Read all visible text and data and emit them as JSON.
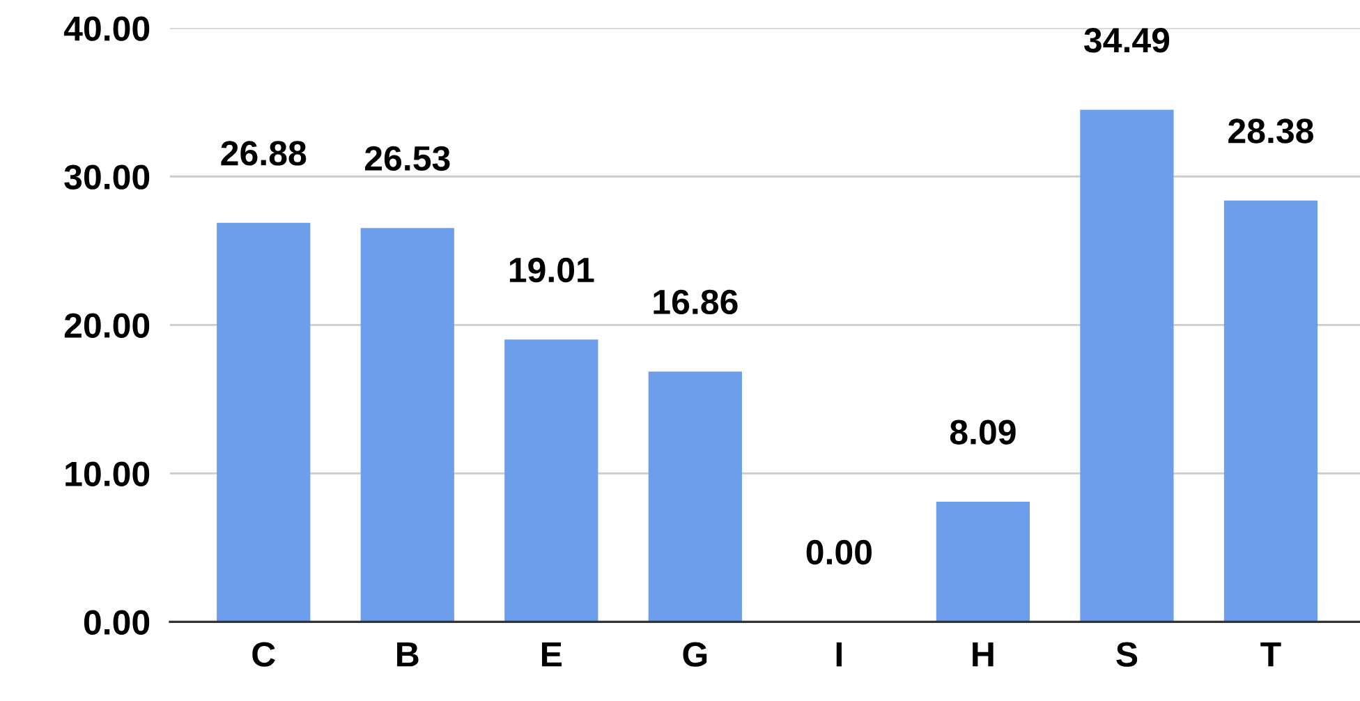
{
  "chart_data": {
    "type": "bar",
    "categories": [
      "C",
      "B",
      "E",
      "G",
      "I",
      "H",
      "S",
      "T"
    ],
    "values": [
      26.88,
      26.53,
      19.01,
      16.86,
      0.0,
      8.09,
      34.49,
      28.38
    ],
    "color": "#6d9eeb",
    "ylim": [
      0,
      40
    ],
    "yticks": [
      {
        "value": 0,
        "label": "0.00"
      },
      {
        "value": 10,
        "label": "10.00"
      },
      {
        "value": 20,
        "label": "20.00"
      },
      {
        "value": 30,
        "label": "30.00"
      },
      {
        "value": 40,
        "label": "40.00"
      }
    ],
    "value_labels": [
      "26.88",
      "26.53",
      "19.01",
      "16.86",
      "0.00",
      "8.09",
      "34.49",
      "28.38"
    ],
    "grid": "y",
    "legend": false
  }
}
